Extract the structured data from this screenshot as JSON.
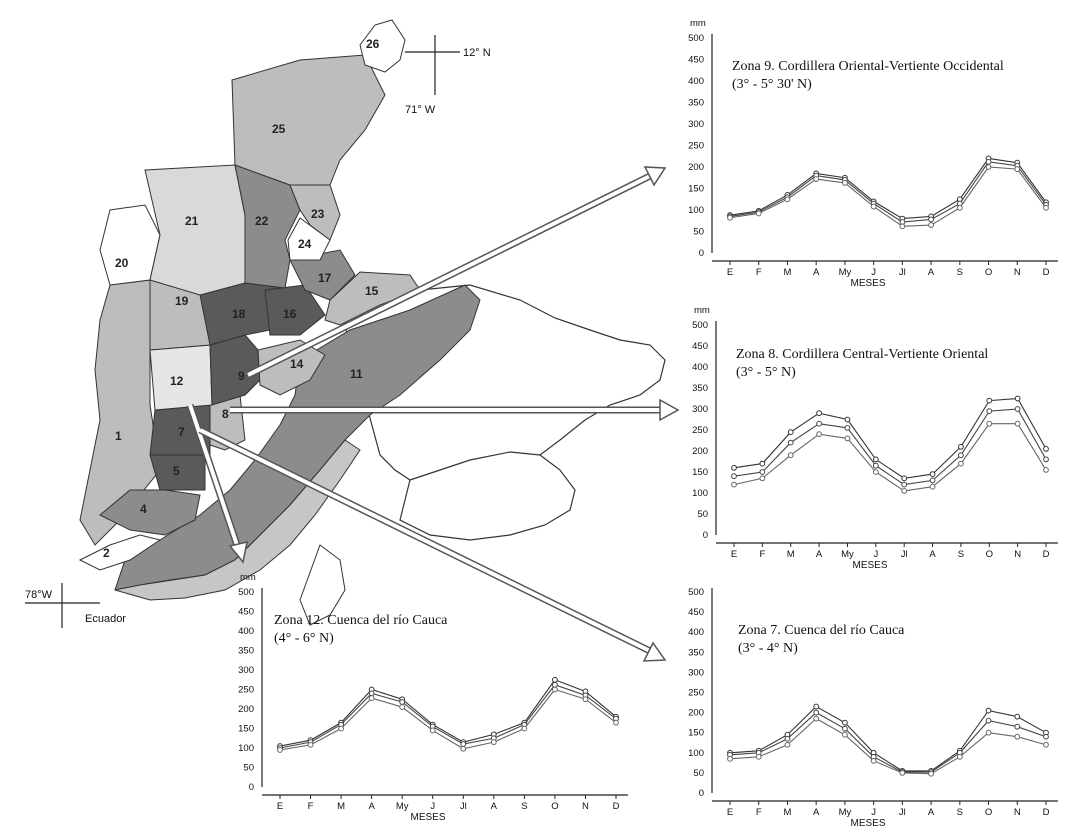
{
  "map": {
    "zones": [
      "1",
      "2",
      "4",
      "5",
      "7",
      "8",
      "9",
      "11",
      "12",
      "14",
      "15",
      "16",
      "17",
      "18",
      "19",
      "20",
      "21",
      "22",
      "23",
      "24",
      "25",
      "26"
    ],
    "coord_north": "12° N",
    "coord_west_top": "71° W",
    "coord_west_bottom": "78°W",
    "neighbor_label": "Ecuador"
  },
  "colors": {
    "dark": "#5a5a5a",
    "medium": "#8c8c8c",
    "light": "#bdbdbd",
    "lighter": "#d9d9d9",
    "line": "#333333"
  },
  "chart_data": [
    {
      "type": "line",
      "title": "Zona 9. Cordillera Oriental-Vertiente Occidental",
      "subtitle": "(3° - 5° 30' N)",
      "ylabel": "mm",
      "xlabel": "MESES",
      "ylim": [
        0,
        500
      ],
      "yticks": [
        0,
        50,
        100,
        150,
        200,
        250,
        300,
        350,
        400,
        450,
        500
      ],
      "categories": [
        "E",
        "F",
        "M",
        "A",
        "My",
        "J",
        "Jl",
        "A",
        "S",
        "O",
        "N",
        "D"
      ],
      "series": [
        {
          "values": [
            88,
            98,
            135,
            185,
            175,
            120,
            80,
            85,
            125,
            220,
            210,
            118
          ]
        },
        {
          "values": [
            85,
            95,
            130,
            180,
            170,
            115,
            72,
            78,
            115,
            212,
            203,
            112
          ]
        },
        {
          "values": [
            82,
            92,
            125,
            172,
            163,
            108,
            62,
            65,
            105,
            200,
            195,
            105
          ]
        }
      ]
    },
    {
      "type": "line",
      "title": "Zona 8. Cordillera Central-Vertiente Oriental",
      "subtitle": "(3° - 5° N)",
      "ylabel": "mm",
      "xlabel": "MESES",
      "ylim": [
        0,
        500
      ],
      "yticks": [
        0,
        50,
        100,
        150,
        200,
        250,
        300,
        350,
        400,
        450,
        500
      ],
      "categories": [
        "E",
        "F",
        "M",
        "A",
        "My",
        "J",
        "Jl",
        "A",
        "S",
        "O",
        "N",
        "D"
      ],
      "series": [
        {
          "values": [
            160,
            170,
            245,
            290,
            275,
            180,
            135,
            145,
            210,
            320,
            325,
            205
          ]
        },
        {
          "values": [
            140,
            150,
            220,
            265,
            255,
            165,
            120,
            130,
            190,
            295,
            300,
            180
          ]
        },
        {
          "values": [
            120,
            135,
            190,
            240,
            230,
            150,
            105,
            115,
            170,
            265,
            265,
            155
          ]
        }
      ]
    },
    {
      "type": "line",
      "title": "Zona 12. Cuenca del río Cauca",
      "subtitle": "(4° - 6° N)",
      "ylabel": "mm",
      "xlabel": "MESES",
      "ylim": [
        0,
        500
      ],
      "yticks": [
        0,
        50,
        100,
        150,
        200,
        250,
        300,
        350,
        400,
        450,
        500
      ],
      "categories": [
        "E",
        "F",
        "M",
        "A",
        "My",
        "J",
        "Jl",
        "A",
        "S",
        "O",
        "N",
        "D"
      ],
      "series": [
        {
          "values": [
            105,
            120,
            165,
            250,
            225,
            160,
            115,
            135,
            165,
            275,
            245,
            180
          ]
        },
        {
          "values": [
            100,
            115,
            160,
            240,
            218,
            155,
            110,
            125,
            160,
            262,
            235,
            175
          ]
        },
        {
          "values": [
            95,
            108,
            150,
            228,
            205,
            145,
            98,
            115,
            150,
            250,
            225,
            165
          ]
        }
      ]
    },
    {
      "type": "line",
      "title": "Zona 7. Cuenca del río Cauca",
      "subtitle": "(3° - 4° N)",
      "ylabel": "",
      "xlabel": "MESES",
      "ylim": [
        0,
        500
      ],
      "yticks": [
        0,
        50,
        100,
        150,
        200,
        250,
        300,
        350,
        400,
        450,
        500
      ],
      "categories": [
        "E",
        "F",
        "M",
        "A",
        "My",
        "J",
        "Jl",
        "A",
        "S",
        "O",
        "N",
        "D"
      ],
      "series": [
        {
          "values": [
            100,
            105,
            145,
            215,
            175,
            100,
            55,
            55,
            105,
            205,
            190,
            150
          ]
        },
        {
          "values": [
            95,
            100,
            135,
            200,
            160,
            90,
            52,
            52,
            100,
            180,
            165,
            140
          ]
        },
        {
          "values": [
            85,
            90,
            120,
            185,
            145,
            80,
            50,
            48,
            90,
            150,
            140,
            120
          ]
        }
      ]
    }
  ]
}
